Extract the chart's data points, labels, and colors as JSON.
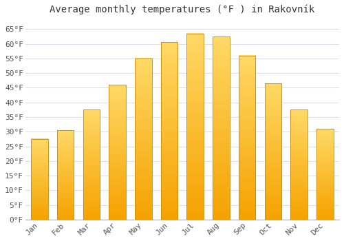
{
  "title": "Average monthly temperatures (°F ) in Rakovník",
  "months": [
    "Jan",
    "Feb",
    "Mar",
    "Apr",
    "May",
    "Jun",
    "Jul",
    "Aug",
    "Sep",
    "Oct",
    "Nov",
    "Dec"
  ],
  "values": [
    27.5,
    30.5,
    37.5,
    46.0,
    55.0,
    60.5,
    63.5,
    62.5,
    56.0,
    46.5,
    37.5,
    31.0
  ],
  "bar_color_bottom": "#F5A200",
  "bar_color_top": "#FFD966",
  "bar_edge_color": "#C8890A",
  "background_color": "#FFFFFF",
  "grid_color": "#DDDDEE",
  "ylim": [
    0,
    68
  ],
  "yticks": [
    0,
    5,
    10,
    15,
    20,
    25,
    30,
    35,
    40,
    45,
    50,
    55,
    60,
    65
  ],
  "title_fontsize": 10,
  "tick_fontsize": 8,
  "bar_width": 0.65
}
